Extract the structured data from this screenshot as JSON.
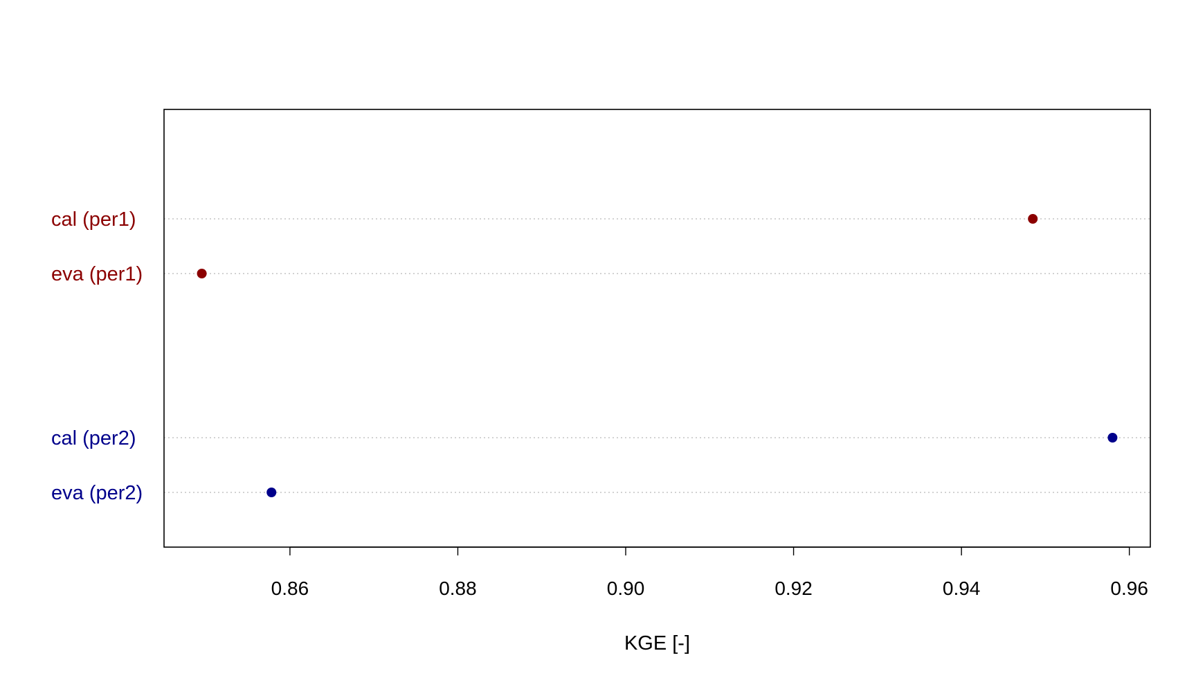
{
  "chart_data": {
    "type": "scatter",
    "title": "",
    "xlabel": "KGE [-]",
    "ylabel": "",
    "xlim": [
      0.845,
      0.9625
    ],
    "xticks": [
      "0.86",
      "0.88",
      "0.90",
      "0.92",
      "0.94",
      "0.96"
    ],
    "grid": "dotted horizontal guide lines per category",
    "legend": "none",
    "groups": [
      {
        "color": "#8B0000",
        "points": [
          {
            "label": "cal (per1)",
            "value": 0.9485
          },
          {
            "label": "eva (per1)",
            "value": 0.8495
          }
        ]
      },
      {
        "color": "#00008B",
        "points": [
          {
            "label": "cal (per2)",
            "value": 0.958
          },
          {
            "label": "eva (per2)",
            "value": 0.8578
          }
        ]
      }
    ]
  }
}
